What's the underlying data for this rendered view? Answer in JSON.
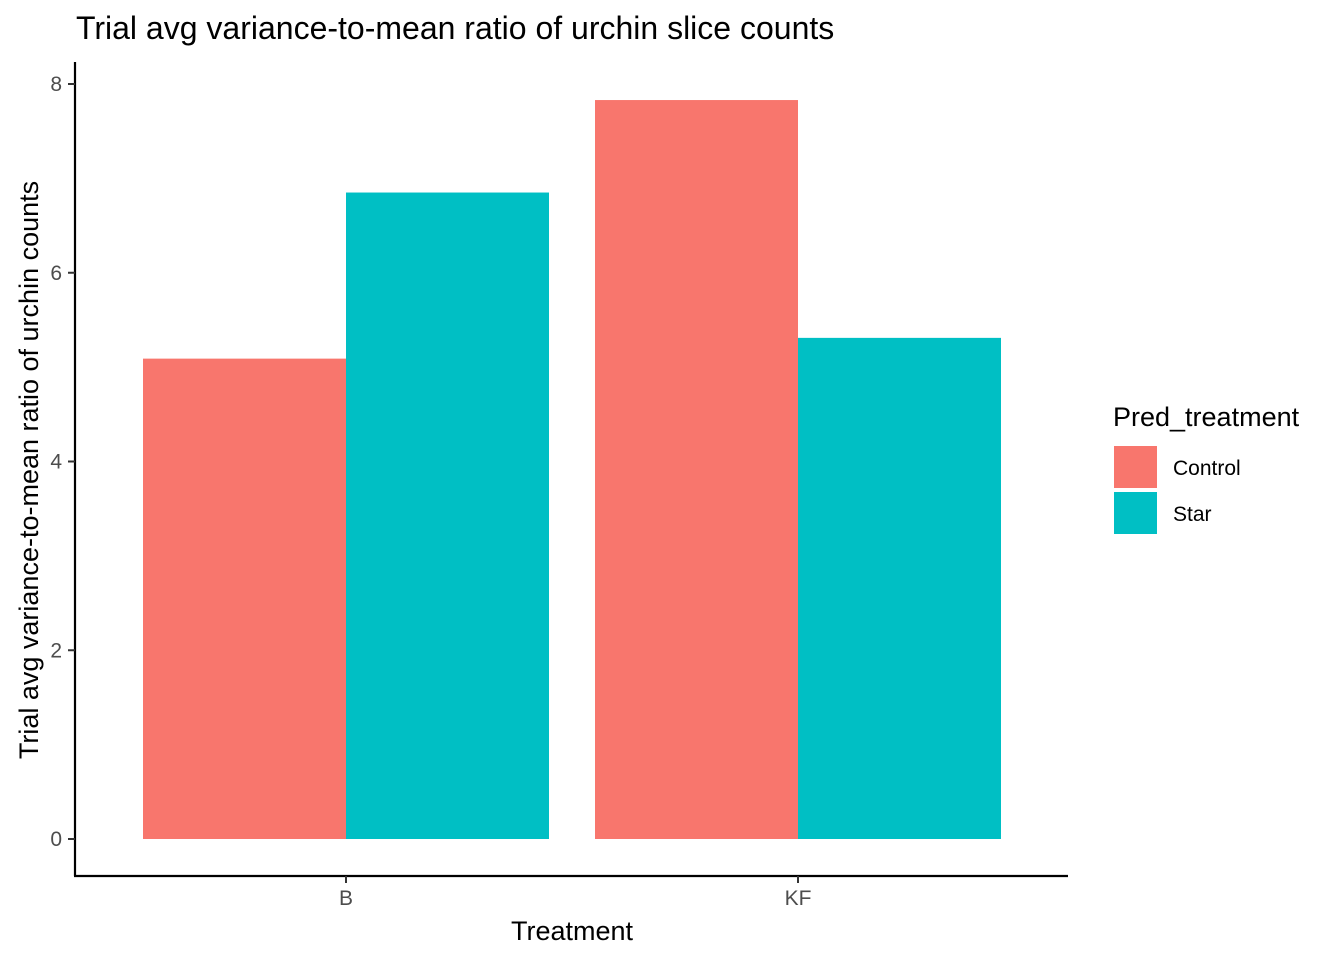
{
  "chart_data": {
    "type": "bar",
    "title": "Trial avg variance-to-mean ratio of urchin slice counts",
    "xlabel": "Treatment",
    "ylabel": "Trial avg variance-to-mean ratio of urchin counts",
    "categories": [
      "B",
      "KF"
    ],
    "series": [
      {
        "name": "Control",
        "values": [
          5.09,
          7.83
        ],
        "color": "#F8766D"
      },
      {
        "name": "Star",
        "values": [
          6.85,
          5.31
        ],
        "color": "#00BFC4"
      }
    ],
    "ylim": [
      0,
      8
    ],
    "y_ticks": [
      0,
      2,
      4,
      6,
      8
    ],
    "legend": {
      "title": "Pred_treatment",
      "placement": "right"
    },
    "grid": false
  }
}
